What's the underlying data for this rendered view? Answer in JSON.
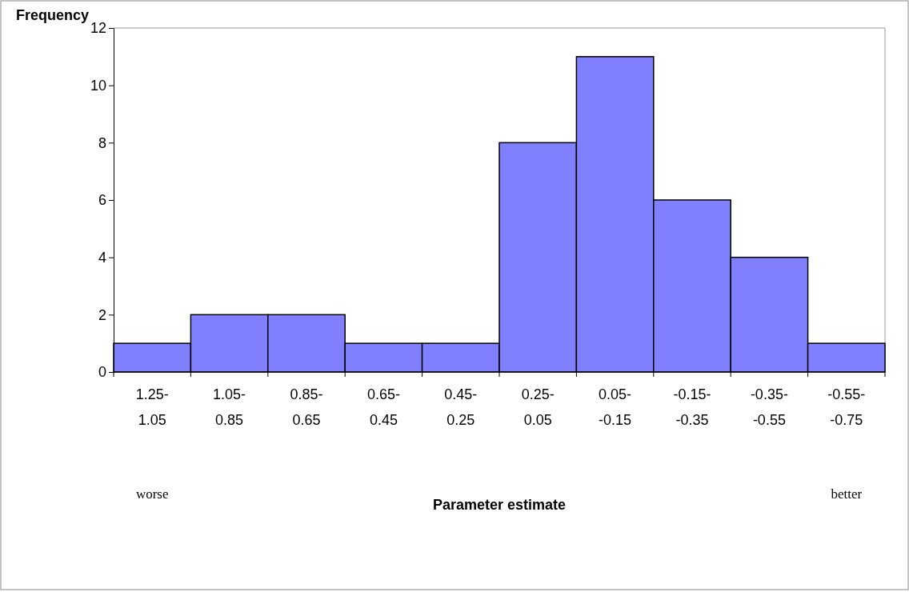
{
  "chart_data": {
    "type": "bar",
    "xlabel": "Parameter estimate",
    "ylabel": "Frequency",
    "categories": [
      "1.25-\n1.05",
      "1.05-\n0.85",
      "0.85-\n0.65",
      "0.65-\n0.45",
      "0.45-\n0.25",
      "0.25-\n0.05",
      "0.05-\n-0.15",
      "-0.15-\n-0.35",
      "-0.35-\n-0.55",
      "-0.55-\n-0.75"
    ],
    "values": [
      1,
      2,
      2,
      1,
      1,
      8,
      11,
      6,
      4,
      1
    ],
    "color": "#8080ff",
    "ylim": [
      0,
      12
    ],
    "yticks": [
      0,
      2,
      4,
      6,
      8,
      10,
      12
    ],
    "annotations": [
      "worse",
      "better"
    ]
  }
}
